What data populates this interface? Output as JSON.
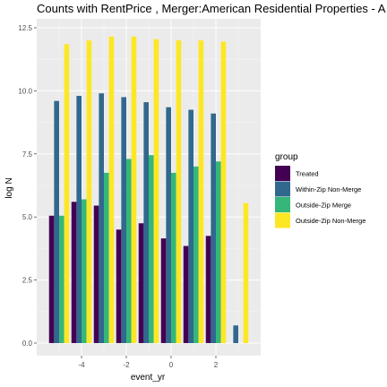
{
  "chart_data": {
    "type": "bar",
    "title": "Counts with RentPrice , Merger:American Residential Properties - A",
    "xlabel": "event_yr",
    "ylabel": "log N",
    "x_ticks": [
      "-4",
      "-2",
      "0",
      "2"
    ],
    "y_ticks": [
      "0.0",
      "2.5",
      "5.0",
      "7.5",
      "10.0",
      "12.5"
    ],
    "xlim": [
      -6,
      4
    ],
    "ylim": [
      0,
      12.5
    ],
    "grid": true,
    "legend_title": "group",
    "legend_position": "right",
    "x": [
      -5,
      -4,
      -3,
      -2,
      -1,
      0,
      1,
      2,
      3
    ],
    "series": [
      {
        "name": "Treated",
        "color": "#440154",
        "values": [
          5.05,
          5.6,
          5.45,
          4.5,
          4.75,
          4.15,
          3.85,
          4.25,
          null
        ]
      },
      {
        "name": "Within-Zip Non-Merge",
        "color": "#31688E",
        "values": [
          9.6,
          9.8,
          9.9,
          9.75,
          9.55,
          9.35,
          9.25,
          9.1,
          0.7
        ]
      },
      {
        "name": "Outside-Zip Merge",
        "color": "#35B779",
        "values": [
          5.05,
          5.7,
          6.75,
          7.3,
          7.45,
          6.75,
          7.0,
          7.2,
          null
        ]
      },
      {
        "name": "Outside-Zip Non-Merge",
        "color": "#FDE725",
        "values": [
          11.85,
          12.0,
          12.15,
          12.15,
          12.05,
          12.0,
          12.0,
          11.95,
          5.55
        ]
      }
    ]
  }
}
